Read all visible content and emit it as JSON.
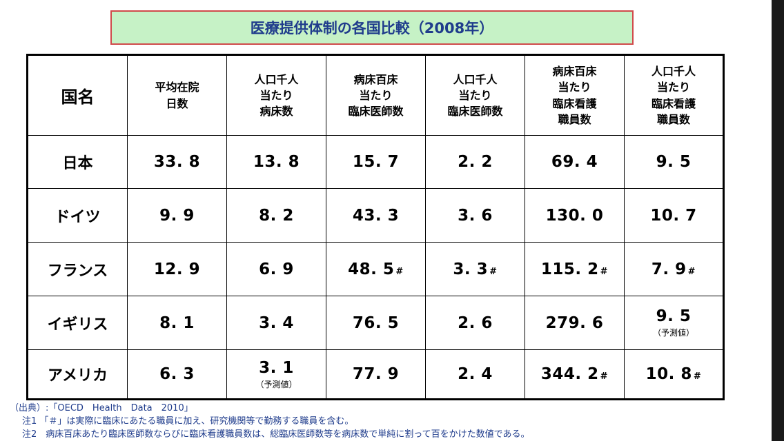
{
  "title": "医療提供体制の各国比較（2008年）",
  "table": {
    "headers": {
      "country": "国名",
      "col1": [
        "平均在院",
        "日数"
      ],
      "col2": [
        "人口千人",
        "当たり",
        "病床数"
      ],
      "col3": [
        "病床百床",
        "当たり",
        "臨床医師数"
      ],
      "col4": [
        "人口千人",
        "当たり",
        "臨床医師数"
      ],
      "col5": [
        "病床百床",
        "当たり",
        "臨床看護",
        "職員数"
      ],
      "col6": [
        "人口千人",
        "当たり",
        "臨床看護",
        "職員数"
      ]
    },
    "rows": [
      {
        "country": "日本",
        "v1": "33. 8",
        "v2": "13. 8",
        "v3": "15. 7",
        "v4": "2. 2",
        "v5": "69. 4",
        "v6": "9. 5"
      },
      {
        "country": "ドイツ",
        "v1": "9. 9",
        "v2": "8. 2",
        "v3": "43. 3",
        "v4": "3. 6",
        "v5": "130. 0",
        "v6": "10. 7"
      },
      {
        "country": "フランス",
        "v1": "12. 9",
        "v2": "6. 9",
        "v3": "48. 5",
        "v3_mark": "#",
        "v4": "3. 3",
        "v4_mark": "#",
        "v5": "115. 2",
        "v5_mark": "#",
        "v6": "7. 9",
        "v6_mark": "#"
      },
      {
        "country": "イギリス",
        "v1": "8. 1",
        "v2": "3. 4",
        "v3": "76. 5",
        "v4": "2. 6",
        "v5": "279. 6",
        "v6": "9. 5",
        "v6_note": "（予測値）"
      },
      {
        "country": "アメリカ",
        "v1": "6. 3",
        "v2": "3. 1",
        "v2_note": "（予測値）",
        "v3": "77. 9",
        "v4": "2. 4",
        "v5": "344. 2",
        "v5_mark": "#",
        "v6": "10. 8",
        "v6_mark": "#"
      }
    ]
  },
  "notes": {
    "source": "（出典）:「OECD　Health　Data　2010」",
    "note1": "注1 「＃」は実際に臨床にあたる職員に加え、研究機関等で勤務する職員を含む。",
    "note2": "注2　病床百床あたり臨床医師数ならびに臨床看護職員数は、総臨床医師数等を病床数で単純に割って百をかけた数値である。"
  }
}
